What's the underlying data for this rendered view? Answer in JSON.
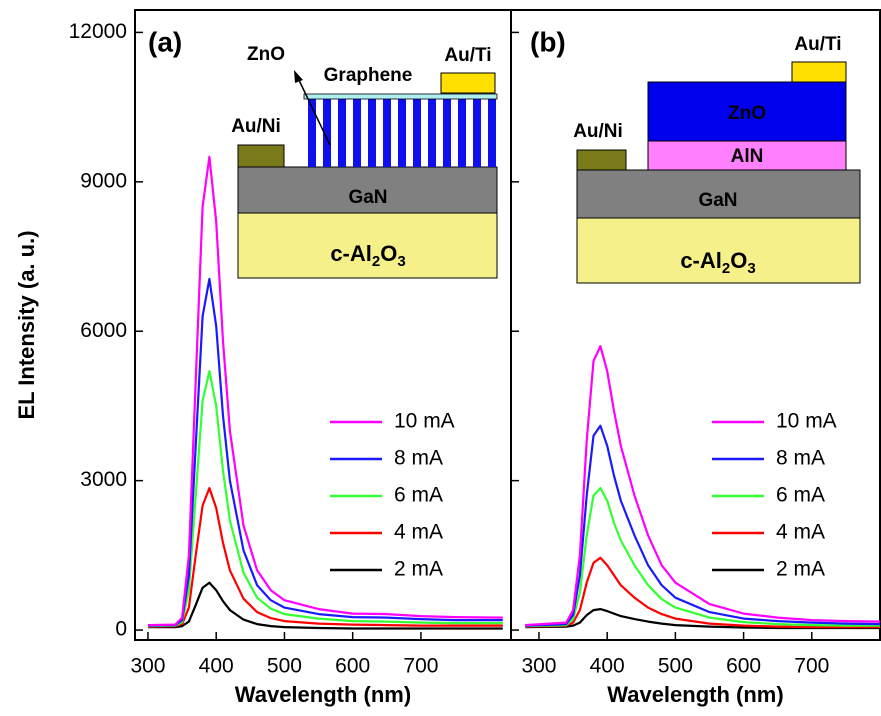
{
  "chart_data": [
    {
      "type": "line",
      "panel_label": "(a)",
      "x_label": "Wavelength (nm)",
      "y_label": "EL Intensity (a. u.)",
      "xlim": [
        281,
        832
      ],
      "xticks": [
        300,
        400,
        500,
        600,
        700
      ],
      "ylim": [
        -200,
        12450
      ],
      "yticks": [
        0,
        3000,
        6000,
        9000,
        12000
      ],
      "x": [
        300,
        340,
        350,
        360,
        370,
        380,
        390,
        400,
        410,
        420,
        440,
        460,
        480,
        500,
        550,
        600,
        650,
        700,
        750,
        820
      ],
      "series": [
        {
          "name": "10 mA",
          "color": "#ff00ff",
          "values": [
            100,
            110,
            250,
            1500,
            5000,
            8500,
            9500,
            8200,
            5800,
            4000,
            2100,
            1200,
            800,
            600,
            420,
            330,
            320,
            280,
            260,
            250
          ]
        },
        {
          "name": "8 mA",
          "color": "#1a1aff",
          "values": [
            90,
            100,
            200,
            1100,
            3700,
            6300,
            7050,
            6100,
            4300,
            3000,
            1600,
            900,
            600,
            450,
            320,
            260,
            250,
            220,
            200,
            200
          ]
        },
        {
          "name": "6 mA",
          "color": "#33ff33",
          "values": [
            80,
            90,
            160,
            800,
            2700,
            4600,
            5200,
            4500,
            3200,
            2200,
            1150,
            650,
            430,
            320,
            230,
            180,
            170,
            150,
            140,
            140
          ]
        },
        {
          "name": "4 mA",
          "color": "#ff0000",
          "values": [
            70,
            80,
            120,
            450,
            1500,
            2500,
            2850,
            2450,
            1750,
            1200,
            630,
            360,
            240,
            180,
            130,
            110,
            100,
            90,
            90,
            90
          ]
        },
        {
          "name": "2 mA",
          "color": "#000000",
          "values": [
            60,
            60,
            80,
            170,
            500,
            850,
            950,
            800,
            580,
            400,
            210,
            120,
            80,
            60,
            40,
            30,
            30,
            30,
            30,
            30
          ]
        }
      ],
      "inset": {
        "top": "ZnO",
        "contact_top": "Graphene",
        "pad_right": "Au/Ti",
        "pad_left": "Au/Ni",
        "layer": "GaN",
        "substrate": [
          "c-Al",
          "2",
          "O",
          "3"
        ]
      }
    },
    {
      "type": "line",
      "panel_label": "(b)",
      "x_label": "Wavelength (nm)",
      "xlim": [
        259,
        800
      ],
      "xticks": [
        300,
        400,
        500,
        600,
        700
      ],
      "ylim": [
        -200,
        12450
      ],
      "x": [
        280,
        340,
        350,
        360,
        370,
        380,
        390,
        400,
        410,
        420,
        440,
        460,
        480,
        500,
        550,
        600,
        650,
        700,
        750,
        800
      ],
      "series": [
        {
          "name": "10 mA",
          "color": "#ff00ff",
          "values": [
            100,
            150,
            400,
            1500,
            3800,
            5400,
            5700,
            5200,
            4400,
            3700,
            2700,
            1900,
            1300,
            950,
            520,
            330,
            250,
            200,
            180,
            170
          ]
        },
        {
          "name": "8 mA",
          "color": "#1a1aff",
          "values": [
            90,
            120,
            300,
            1100,
            2700,
            3900,
            4100,
            3700,
            3100,
            2600,
            1900,
            1300,
            900,
            650,
            360,
            230,
            180,
            150,
            130,
            120
          ]
        },
        {
          "name": "6 mA",
          "color": "#33ff33",
          "values": [
            80,
            100,
            220,
            750,
            1900,
            2700,
            2850,
            2600,
            2150,
            1800,
            1300,
            900,
            620,
            450,
            250,
            160,
            120,
            100,
            90,
            90
          ]
        },
        {
          "name": "4 mA",
          "color": "#ff0000",
          "values": [
            70,
            90,
            150,
            400,
            950,
            1350,
            1450,
            1300,
            1100,
            900,
            650,
            450,
            320,
            230,
            130,
            90,
            70,
            60,
            60,
            60
          ]
        },
        {
          "name": "2 mA",
          "color": "#000000",
          "values": [
            60,
            70,
            90,
            150,
            300,
            400,
            420,
            380,
            330,
            280,
            220,
            170,
            130,
            100,
            70,
            50,
            40,
            40,
            40,
            40
          ]
        }
      ],
      "inset": {
        "pad_right": "Au/Ti",
        "top": "ZnO",
        "barrier": "AlN",
        "pad_left": "Au/Ni",
        "layer": "GaN",
        "substrate": [
          "c-Al",
          "2",
          "O",
          "3"
        ]
      }
    }
  ]
}
